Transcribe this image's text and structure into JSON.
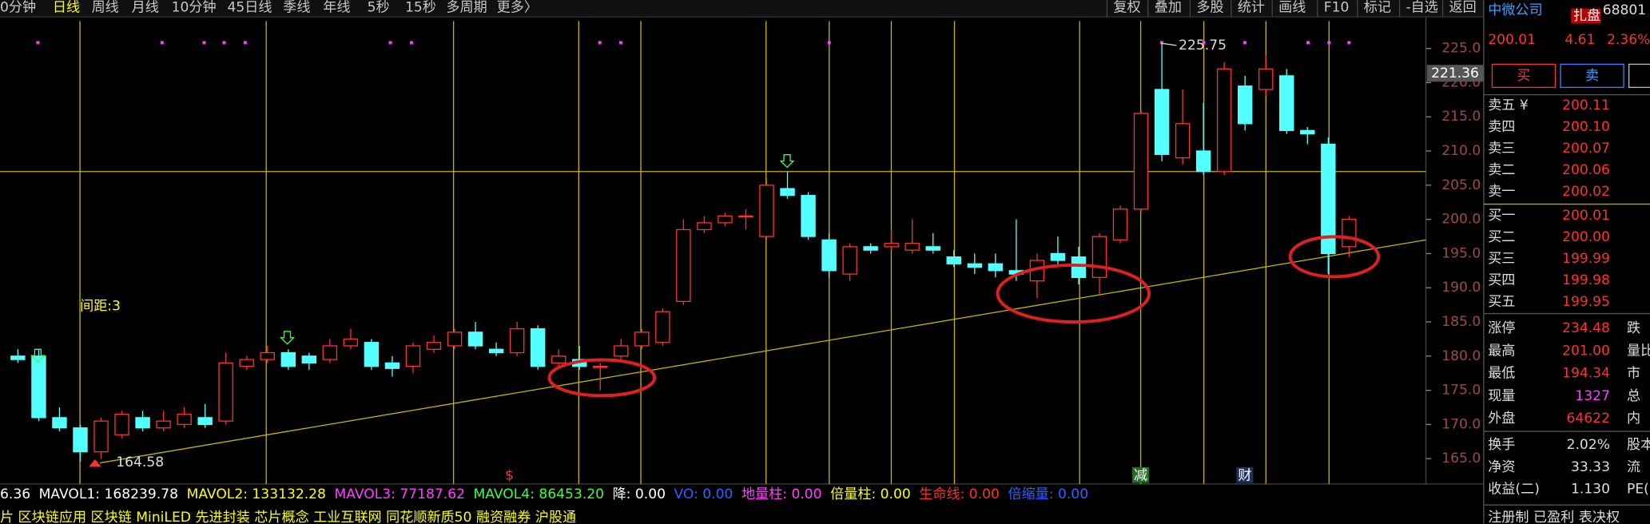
{
  "toolbar": {
    "left": [
      "0分钟",
      "日线",
      "周线",
      "月线",
      "10分钟",
      "45日线",
      "季线",
      "年线",
      "5秒",
      "15秒",
      "多周期",
      "更多〉"
    ],
    "selected": 1,
    "right": [
      "复权",
      "叠加",
      "多股",
      "统计",
      "画线",
      "F10",
      "标记",
      "-自选",
      "返回"
    ]
  },
  "chart_data": {
    "type": "candlestick",
    "open": [
      180,
      180,
      171,
      169.5,
      166,
      168.5,
      171,
      169.5,
      170,
      171,
      170.5,
      178.5,
      179.5,
      180.5,
      180,
      179.5,
      181.5,
      182,
      179,
      178.5,
      181,
      181.5,
      183.5,
      181,
      180.5,
      184,
      179,
      179.5,
      178.5,
      180,
      181.5,
      182,
      188,
      198.5,
      199.5,
      200.5,
      197.5,
      204.5,
      203.5,
      197,
      192,
      196,
      196,
      195.5,
      196,
      194.5,
      193.5,
      193.5,
      192.5,
      191,
      195,
      194.5,
      191.5,
      197,
      201.5,
      219,
      209,
      210,
      207,
      219.5,
      219,
      221,
      213,
      211,
      196
    ],
    "high": [
      181,
      181,
      172.5,
      170,
      171,
      172,
      172,
      172,
      172.5,
      173,
      180.5,
      180,
      181.5,
      181,
      180.5,
      182.5,
      184,
      182.5,
      180,
      182,
      183,
      184,
      185,
      182,
      185,
      184.5,
      181,
      181.5,
      179,
      182.5,
      184,
      187,
      200,
      200.5,
      201,
      201.5,
      206,
      207,
      204,
      198,
      196.5,
      196.5,
      198.5,
      200,
      198,
      195.5,
      195,
      195,
      200,
      195,
      197.5,
      196,
      198,
      202,
      216,
      225.75,
      219,
      217,
      223,
      221,
      224,
      222,
      213.5,
      212,
      200.5
    ],
    "low": [
      179,
      170.5,
      169,
      164.58,
      165,
      168,
      169,
      169,
      169.5,
      169.5,
      170,
      178,
      179,
      178,
      178,
      179,
      181,
      178,
      177,
      177.5,
      180.5,
      181,
      181,
      180,
      180,
      178,
      178.5,
      178,
      175,
      179.5,
      181,
      181.5,
      187.5,
      198,
      199,
      198.5,
      197,
      203,
      197,
      191.5,
      191,
      195,
      195.5,
      195,
      195,
      193,
      192,
      191.5,
      191,
      188.5,
      193,
      190.5,
      189,
      196.5,
      201,
      208.5,
      208,
      206.5,
      206.5,
      213,
      218,
      212.5,
      211,
      192,
      194.5
    ],
    "close": [
      179.5,
      171,
      169.5,
      166,
      170.5,
      171.5,
      169.5,
      170.5,
      171.5,
      170,
      179,
      179.5,
      180.5,
      178.5,
      179,
      181.5,
      182.5,
      178.5,
      178.2,
      181.5,
      182,
      183.5,
      181.5,
      180.5,
      184,
      178.5,
      180,
      178.5,
      178.5,
      181.5,
      183.5,
      186.5,
      198.5,
      199.5,
      200.5,
      200.5,
      205,
      203.5,
      197.5,
      192.5,
      196,
      195.5,
      196.5,
      196.5,
      195.5,
      193.5,
      193,
      192.5,
      192,
      194,
      194,
      191.5,
      197.5,
      201.5,
      215.5,
      209.5,
      214,
      207,
      222,
      214,
      222,
      213,
      212.5,
      195,
      200
    ],
    "up_color": "#ff3030",
    "down_color": "#54ffff",
    "ylim": [
      161.3,
      229
    ],
    "yticks": [
      {
        "value": 165,
        "label": "165.0"
      },
      {
        "value": 170,
        "label": "170.0"
      },
      {
        "value": 175,
        "label": "175.0"
      },
      {
        "value": 180,
        "label": "180.0"
      },
      {
        "value": 185,
        "label": "185.0"
      },
      {
        "value": 190,
        "label": "190.0"
      },
      {
        "value": 195,
        "label": "195.0"
      },
      {
        "value": 200,
        "label": "200.0"
      },
      {
        "value": 205,
        "label": "205.0"
      },
      {
        "value": 210,
        "label": "210.0"
      },
      {
        "value": 215,
        "label": "215.0"
      },
      {
        "value": 220,
        "label": "220.0"
      },
      {
        "value": 225,
        "label": "225.0"
      }
    ],
    "price_tag": 221.36,
    "spacing_label": "间距:3",
    "markers": [
      "$",
      "减",
      "财"
    ]
  },
  "indicators": [
    {
      "text": "6.36",
      "color": "#ffffff"
    },
    {
      "text": "MAVOL1: 168239.78",
      "color": "#ffffff"
    },
    {
      "text": "MAVOL2: 133132.28",
      "color": "#ffff00"
    },
    {
      "text": "MAVOL3: 77187.62",
      "color": "#ff40ff"
    },
    {
      "text": "MAVOL4: 86453.20",
      "color": "#40ff40"
    },
    {
      "text": "降: 0.00",
      "color": "#ffffff"
    },
    {
      "text": "VO: 0.00",
      "color": "#3060ff"
    },
    {
      "text": "地量柱: 0.00",
      "color": "#ff40ff"
    },
    {
      "text": "倍量柱: 0.00",
      "color": "#ffff00"
    },
    {
      "text": "生命线: 0.00",
      "color": "#ff3030"
    },
    {
      "text": "倍缩量: 0.00",
      "color": "#3060ff"
    }
  ],
  "concepts": "片 区块链应用 区块链 MiniLED 先进封装 芯片概念 工业互联网 同花顺新质50 融资融券 沪股通",
  "quote": {
    "name": "中微公司",
    "code": "68801",
    "badge": "扎盘",
    "price": "200.01",
    "change": "4.61",
    "pct": "2.36%",
    "buy": "买",
    "sell": "卖",
    "asks": [
      [
        "卖五 ¥",
        "200.11"
      ],
      [
        "卖四",
        "200.10"
      ],
      [
        "卖三",
        "200.07"
      ],
      [
        "卖二",
        "200.06"
      ],
      [
        "卖一",
        "200.02"
      ]
    ],
    "bids": [
      [
        "买一",
        "200.01"
      ],
      [
        "买二",
        "200.00"
      ],
      [
        "买三",
        "199.99"
      ],
      [
        "买四",
        "199.98"
      ],
      [
        "买五",
        "199.95"
      ]
    ],
    "stats": [
      [
        "涨停",
        "234.48",
        "跌"
      ],
      [
        "最高",
        "201.00",
        "量比"
      ],
      [
        "最低",
        "194.34",
        "市"
      ],
      [
        "现量",
        "1327",
        "总"
      ],
      [
        "外盘",
        "64622",
        "内"
      ],
      [
        "换手",
        "2.02%",
        "股本"
      ],
      [
        "净资",
        "33.33",
        "流"
      ],
      [
        "收益(二)",
        "1.130",
        "PE("
      ]
    ],
    "footer": "注册制 已盈利 表决权"
  }
}
